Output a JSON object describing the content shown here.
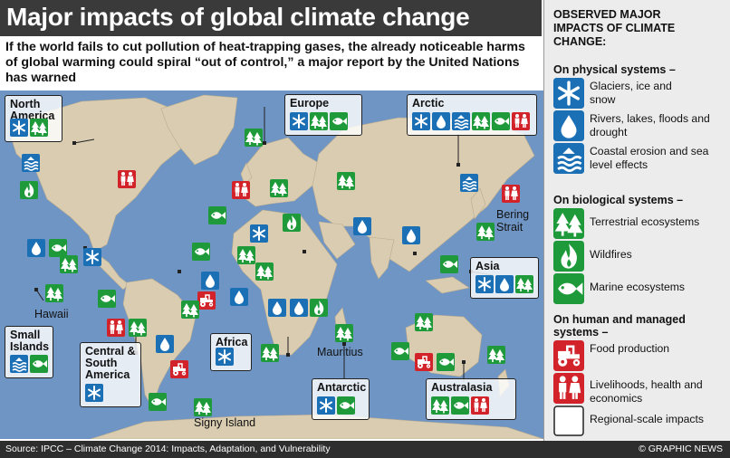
{
  "title": "Major impacts of global climate change",
  "intro": "If the world fails to cut pollution of heat-trapping gases, the already noticeable harms of global warming could spiral “out of control,” a major report by the United Nations has warned",
  "legend": {
    "title": "OBSERVED MAJOR IMPACTS OF CLIMATE CHANGE:",
    "physical_heading": "On physical systems –",
    "physical": [
      {
        "icon": "snowflake-icon",
        "label": "Glaciers, ice and snow"
      },
      {
        "icon": "water-drop-icon",
        "label": "Rivers, lakes, floods and drought"
      },
      {
        "icon": "coastal-erosion-icon",
        "label": "Coastal erosion and sea level effects"
      }
    ],
    "biological_heading": "On biological systems –",
    "biological": [
      {
        "icon": "trees-icon",
        "label": "Terrestrial ecosystems"
      },
      {
        "icon": "flame-icon",
        "label": "Wildfires"
      },
      {
        "icon": "fish-icon",
        "label": "Marine ecosystems"
      }
    ],
    "human_heading": "On human and managed systems –",
    "human": [
      {
        "icon": "tractor-icon",
        "label": "Food production"
      },
      {
        "icon": "people-icon",
        "label": "Livelihoods, health and economics"
      },
      {
        "icon": "blank-square-icon",
        "label": "Regional-scale impacts"
      }
    ]
  },
  "colors": {
    "physical": "#1a6fb5",
    "biological": "#1f9a3a",
    "human": "#d2232a",
    "ocean": "#6f95c4",
    "land": "#d9ccb0"
  },
  "regions": {
    "north_america": {
      "label": "North America",
      "icons": [
        "snowflake-icon",
        "trees-icon"
      ]
    },
    "europe": {
      "label": "Europe",
      "icons": [
        "snowflake-icon",
        "trees-icon",
        "fish-icon"
      ]
    },
    "arctic": {
      "label": "Arctic",
      "icons": [
        "snowflake-icon",
        "water-drop-icon",
        "coastal-erosion-icon",
        "trees-icon",
        "fish-icon",
        "people-icon"
      ]
    },
    "asia": {
      "label": "Asia",
      "icons": [
        "snowflake-icon",
        "water-drop-icon",
        "trees-icon"
      ]
    },
    "small_islands": {
      "label": "Small Islands",
      "icons": [
        "coastal-erosion-icon",
        "fish-icon"
      ]
    },
    "central_south_america": {
      "label": "Central & South America",
      "icons": [
        "snowflake-icon"
      ]
    },
    "africa": {
      "label": "Africa",
      "icons": [
        "snowflake-icon"
      ]
    },
    "antarctic": {
      "label": "Antarctic",
      "icons": [
        "snowflake-icon",
        "fish-icon"
      ]
    },
    "australasia": {
      "label": "Australasia",
      "icons": [
        "trees-icon",
        "fish-icon",
        "people-icon"
      ]
    }
  },
  "places": {
    "hawaii": "Hawaii",
    "bering": "Bering Strait",
    "mauritius": "Mauritius",
    "signy": "Signy Island"
  },
  "footer": {
    "source": "Source: IPCC – Climate Change 2014: Impacts, Adaptation, and Vulnerability",
    "credit": "© GRAPHIC NEWS"
  }
}
